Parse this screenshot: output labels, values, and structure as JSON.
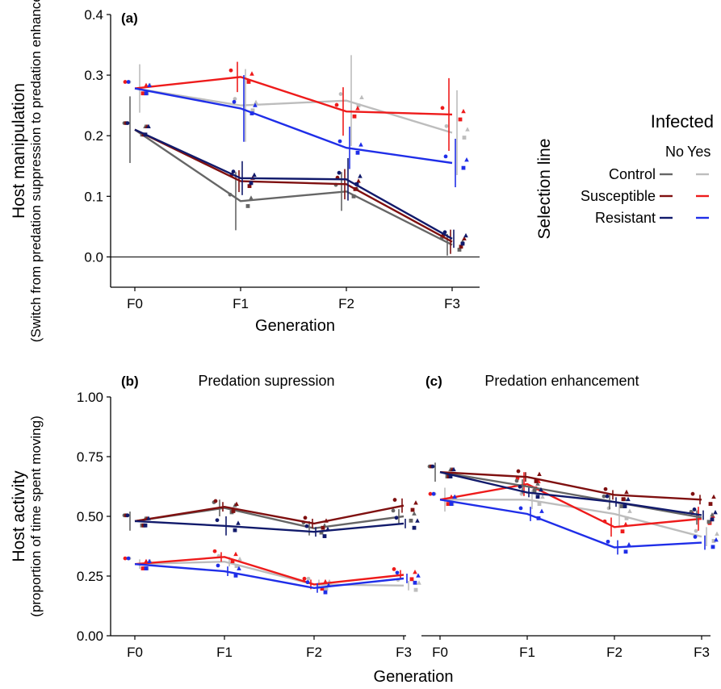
{
  "figure": {
    "colors": {
      "control_no": "#666666",
      "control_yes": "#bdbdbd",
      "susceptible_no": "#7f1010",
      "susceptible_yes": "#ee1b1b",
      "resistant_no": "#111a6b",
      "resistant_yes": "#1f2ee8"
    }
  },
  "legend": {
    "title": "Infected",
    "row_title": "Selection line",
    "columns": [
      "No",
      "Yes"
    ],
    "rows": [
      "Control",
      "Susceptible",
      "Resistant"
    ]
  },
  "chart_data": [
    {
      "type": "line",
      "panel_label": "(a)",
      "title": "",
      "xlabel": "Generation",
      "ylabel": "Host manipulation",
      "ylabel_sub": "(Switch from predation suppression to predation enhancement)",
      "categories": [
        "F0",
        "F1",
        "F2",
        "F3"
      ],
      "ylim": [
        -0.05,
        0.4
      ],
      "yticks": [
        "0.0",
        "0.1",
        "0.2",
        "0.3",
        "0.4"
      ],
      "hline": 0,
      "series": [
        {
          "key": "control_no",
          "values": [
            0.21,
            0.092,
            0.108,
            0.02
          ],
          "err": [
            0.055,
            0.048,
            0.032,
            0.018
          ]
        },
        {
          "key": "susceptible_no",
          "values": [
            0.21,
            0.125,
            0.12,
            0.025
          ],
          "err": [
            0,
            0.018,
            0.025,
            0.02
          ]
        },
        {
          "key": "resistant_no",
          "values": [
            0.21,
            0.13,
            0.128,
            0.03
          ],
          "err": [
            0,
            0.028,
            0.035,
            0.015
          ]
        },
        {
          "key": "control_yes",
          "values": [
            0.278,
            0.25,
            0.258,
            0.205
          ],
          "err": [
            0.04,
            0.06,
            0.075,
            0.07
          ]
        },
        {
          "key": "susceptible_yes",
          "values": [
            0.278,
            0.297,
            0.24,
            0.235
          ],
          "err": [
            0,
            0.025,
            0.04,
            0.06
          ]
        },
        {
          "key": "resistant_yes",
          "values": [
            0.278,
            0.245,
            0.18,
            0.155
          ],
          "err": [
            0,
            0.055,
            0.035,
            0.04
          ]
        }
      ]
    },
    {
      "type": "line",
      "panel_label": "(b)",
      "title": "Predation supression",
      "xlabel": "",
      "ylabel": "Host activity",
      "ylabel_sub": "(proportion of time spent moving)",
      "categories": [
        "F0",
        "F1",
        "F2",
        "F3"
      ],
      "ylim": [
        0,
        1
      ],
      "yticks": [
        "0.00",
        "0.25",
        "0.50",
        "0.75",
        "1.00"
      ],
      "series": [
        {
          "key": "control_no",
          "values": [
            0.48,
            0.535,
            0.45,
            0.5
          ],
          "err": [
            0.04,
            0.035,
            0.03,
            0.03
          ]
        },
        {
          "key": "susceptible_no",
          "values": [
            0.48,
            0.54,
            0.47,
            0.545
          ],
          "err": [
            0,
            0.02,
            0.02,
            0.03
          ]
        },
        {
          "key": "resistant_no",
          "values": [
            0.48,
            0.46,
            0.435,
            0.47
          ],
          "err": [
            0,
            0.04,
            0.02,
            0.02
          ]
        },
        {
          "key": "control_yes",
          "values": [
            0.3,
            0.31,
            0.215,
            0.21
          ],
          "err": [
            0.02,
            0.02,
            0.02,
            0.02
          ]
        },
        {
          "key": "susceptible_yes",
          "values": [
            0.3,
            0.33,
            0.215,
            0.255
          ],
          "err": [
            0,
            0.02,
            0.02,
            0.02
          ]
        },
        {
          "key": "resistant_yes",
          "values": [
            0.3,
            0.27,
            0.2,
            0.24
          ],
          "err": [
            0,
            0.02,
            0.02,
            0.02
          ]
        }
      ]
    },
    {
      "type": "line",
      "panel_label": "(c)",
      "title": "Predation enhancement",
      "xlabel": "Generation",
      "categories": [
        "F0",
        "F1",
        "F2",
        "F3"
      ],
      "ylim": [
        0,
        1
      ],
      "series": [
        {
          "key": "control_no",
          "values": [
            0.685,
            0.625,
            0.56,
            0.495
          ],
          "err": [
            0.04,
            0.03,
            0.03,
            0.03
          ]
        },
        {
          "key": "susceptible_no",
          "values": [
            0.685,
            0.665,
            0.59,
            0.57
          ],
          "err": [
            0,
            0.02,
            0.02,
            0.02
          ]
        },
        {
          "key": "resistant_no",
          "values": [
            0.685,
            0.6,
            0.56,
            0.505
          ],
          "err": [
            0,
            0.02,
            0.02,
            0.02
          ]
        },
        {
          "key": "control_yes",
          "values": [
            0.57,
            0.57,
            0.51,
            0.415
          ],
          "err": [
            0.05,
            0.04,
            0.05,
            0.04
          ]
        },
        {
          "key": "susceptible_yes",
          "values": [
            0.57,
            0.635,
            0.455,
            0.49
          ],
          "err": [
            0,
            0.05,
            0.04,
            0.05
          ]
        },
        {
          "key": "resistant_yes",
          "values": [
            0.57,
            0.51,
            0.37,
            0.39
          ],
          "err": [
            0,
            0.03,
            0.03,
            0.03
          ]
        }
      ]
    }
  ]
}
